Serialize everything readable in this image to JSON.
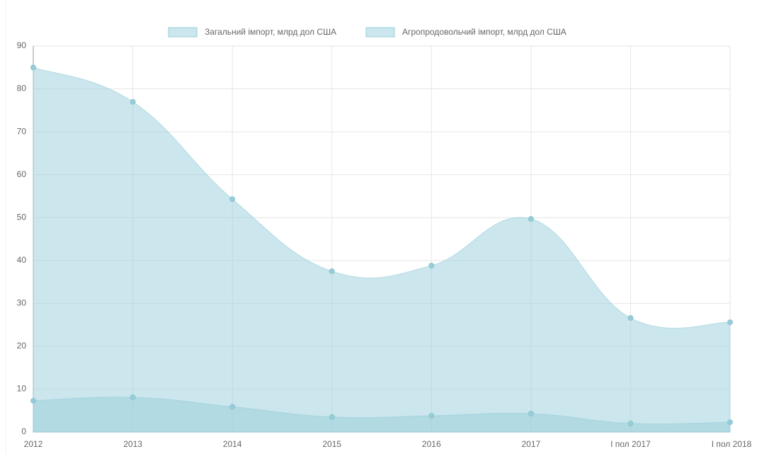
{
  "chart_data": {
    "type": "area",
    "categories": [
      "2012",
      "2013",
      "2014",
      "2015",
      "2016",
      "2017",
      "I пол 2017",
      "I пол 2018"
    ],
    "series": [
      {
        "name": "Загальний імпорт, млрд дол США",
        "color": "#97cdd9",
        "values": [
          85,
          77,
          54.3,
          37.5,
          38.8,
          49.7,
          26.6,
          25.6
        ]
      },
      {
        "name": "Агропродовольчий імпорт, млрд дол США",
        "color": "#97cdd9",
        "values": [
          7.3,
          8.1,
          5.9,
          3.5,
          3.8,
          4.3,
          2.0,
          2.3
        ]
      }
    ],
    "ylim": [
      0,
      90
    ],
    "yticks": [
      0,
      10,
      20,
      30,
      40,
      50,
      60,
      70,
      80,
      90
    ],
    "grid": true,
    "legend": "top"
  }
}
